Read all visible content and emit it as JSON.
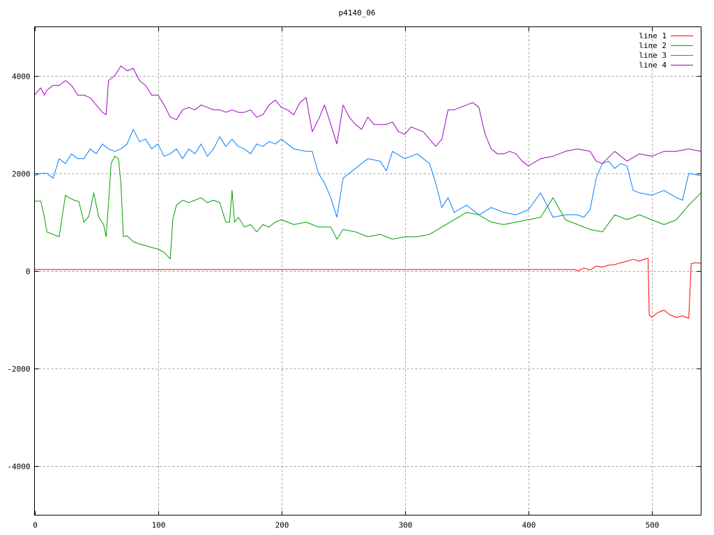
{
  "chart_data": {
    "type": "line",
    "title": "p4140_06",
    "xlabel": "",
    "ylabel": "",
    "xlim": [
      0,
      540
    ],
    "ylim": [
      -5000,
      5000
    ],
    "xticks": [
      0,
      100,
      200,
      300,
      400,
      500
    ],
    "yticks": [
      -4000,
      -2000,
      0,
      2000,
      4000
    ],
    "xtick_labels": [
      "0",
      "100",
      "200",
      "300",
      "400",
      "500"
    ],
    "ytick_labels": [
      "-4000",
      "-2000",
      "0",
      "2000",
      "4000"
    ],
    "grid": true,
    "legend_position": "top-right",
    "series": [
      {
        "name": "line 1",
        "color": "#ff0000",
        "x": [
          0,
          100,
          200,
          300,
          400,
          438,
          440,
          445,
          450,
          455,
          460,
          465,
          470,
          475,
          480,
          485,
          490,
          495,
          497,
          498,
          500,
          505,
          510,
          515,
          520,
          525,
          530,
          532,
          535,
          540
        ],
        "y": [
          30,
          30,
          30,
          30,
          30,
          30,
          0,
          60,
          20,
          100,
          80,
          120,
          130,
          170,
          200,
          240,
          200,
          250,
          260,
          -900,
          -950,
          -850,
          -800,
          -900,
          -950,
          -920,
          -970,
          150,
          170,
          160
        ]
      },
      {
        "name": "line 2",
        "color": "#00a000",
        "x": [
          0,
          5,
          8,
          10,
          15,
          20,
          25,
          28,
          32,
          36,
          40,
          44,
          48,
          52,
          56,
          58,
          60,
          62,
          65,
          68,
          70,
          72,
          75,
          80,
          85,
          90,
          95,
          100,
          105,
          108,
          110,
          112,
          115,
          120,
          125,
          130,
          135,
          140,
          145,
          150,
          155,
          158,
          160,
          162,
          165,
          170,
          175,
          180,
          185,
          190,
          195,
          200,
          210,
          220,
          230,
          240,
          245,
          250,
          260,
          270,
          280,
          290,
          300,
          310,
          320,
          330,
          340,
          350,
          360,
          370,
          380,
          390,
          400,
          410,
          420,
          430,
          440,
          450,
          460,
          470,
          480,
          490,
          500,
          510,
          520,
          530,
          540
        ],
        "y": [
          1430,
          1430,
          1100,
          800,
          750,
          700,
          1550,
          1500,
          1450,
          1420,
          1000,
          1120,
          1600,
          1100,
          950,
          700,
          1400,
          2200,
          2350,
          2300,
          1800,
          700,
          720,
          600,
          550,
          520,
          480,
          450,
          380,
          300,
          250,
          1050,
          1350,
          1450,
          1400,
          1450,
          1500,
          1400,
          1450,
          1400,
          1000,
          1000,
          1650,
          1000,
          1100,
          900,
          950,
          800,
          950,
          900,
          1000,
          1050,
          950,
          1000,
          900,
          900,
          650,
          850,
          800,
          700,
          750,
          650,
          700,
          700,
          750,
          900,
          1050,
          1200,
          1150,
          1000,
          950,
          1000,
          1050,
          1100,
          1500,
          1050,
          950,
          850,
          800,
          1150,
          1050,
          1150,
          1050,
          950,
          1050,
          1350,
          1600
        ]
      },
      {
        "name": "line 3",
        "color": "#0080ff",
        "x": [
          0,
          5,
          10,
          15,
          20,
          25,
          30,
          35,
          40,
          45,
          50,
          55,
          60,
          65,
          70,
          75,
          80,
          85,
          90,
          95,
          100,
          105,
          110,
          115,
          120,
          125,
          130,
          135,
          140,
          145,
          150,
          155,
          160,
          165,
          170,
          175,
          180,
          185,
          190,
          195,
          200,
          210,
          220,
          225,
          230,
          235,
          240,
          245,
          250,
          260,
          270,
          280,
          285,
          290,
          300,
          310,
          320,
          325,
          330,
          335,
          340,
          350,
          360,
          370,
          380,
          390,
          400,
          410,
          420,
          430,
          440,
          445,
          450,
          455,
          460,
          465,
          470,
          475,
          480,
          485,
          490,
          500,
          510,
          520,
          525,
          530,
          540
        ],
        "y": [
          1950,
          2000,
          2000,
          1900,
          2300,
          2200,
          2400,
          2300,
          2300,
          2500,
          2400,
          2600,
          2500,
          2450,
          2500,
          2600,
          2900,
          2650,
          2700,
          2500,
          2600,
          2350,
          2400,
          2500,
          2300,
          2500,
          2400,
          2600,
          2350,
          2500,
          2750,
          2550,
          2700,
          2550,
          2500,
          2400,
          2600,
          2550,
          2650,
          2600,
          2700,
          2500,
          2450,
          2450,
          2000,
          1800,
          1500,
          1100,
          1900,
          2100,
          2300,
          2250,
          2050,
          2450,
          2300,
          2400,
          2200,
          1800,
          1300,
          1500,
          1200,
          1350,
          1150,
          1300,
          1200,
          1150,
          1250,
          1600,
          1100,
          1150,
          1150,
          1100,
          1250,
          1900,
          2200,
          2250,
          2100,
          2200,
          2150,
          1650,
          1600,
          1550,
          1650,
          1500,
          1450,
          2000,
          1950
        ]
      },
      {
        "name": "line 4",
        "color": "#a000c0",
        "x": [
          0,
          5,
          8,
          10,
          15,
          20,
          25,
          30,
          35,
          40,
          45,
          50,
          55,
          58,
          60,
          65,
          70,
          75,
          80,
          85,
          90,
          95,
          100,
          105,
          110,
          115,
          120,
          125,
          130,
          135,
          140,
          145,
          150,
          155,
          160,
          165,
          170,
          175,
          180,
          185,
          190,
          195,
          200,
          205,
          210,
          215,
          220,
          225,
          230,
          235,
          240,
          245,
          250,
          255,
          260,
          265,
          270,
          275,
          280,
          285,
          290,
          295,
          300,
          305,
          310,
          315,
          320,
          325,
          330,
          335,
          340,
          345,
          350,
          355,
          360,
          365,
          370,
          375,
          380,
          385,
          390,
          395,
          400,
          410,
          420,
          430,
          440,
          450,
          455,
          460,
          470,
          480,
          490,
          500,
          510,
          520,
          530,
          540
        ],
        "y": [
          3600,
          3750,
          3600,
          3700,
          3800,
          3800,
          3900,
          3800,
          3600,
          3600,
          3550,
          3400,
          3250,
          3200,
          3900,
          4000,
          4200,
          4100,
          4150,
          3900,
          3800,
          3600,
          3600,
          3400,
          3150,
          3100,
          3300,
          3350,
          3300,
          3400,
          3350,
          3300,
          3300,
          3250,
          3300,
          3250,
          3250,
          3300,
          3150,
          3200,
          3400,
          3500,
          3350,
          3300,
          3200,
          3450,
          3550,
          2850,
          3100,
          3400,
          3000,
          2600,
          3400,
          3150,
          3000,
          2900,
          3150,
          3000,
          3000,
          3000,
          3050,
          2850,
          2800,
          2950,
          2900,
          2850,
          2700,
          2550,
          2700,
          3300,
          3300,
          3350,
          3400,
          3450,
          3350,
          2800,
          2500,
          2400,
          2400,
          2450,
          2400,
          2250,
          2150,
          2300,
          2350,
          2450,
          2500,
          2450,
          2250,
          2200,
          2450,
          2250,
          2400,
          2350,
          2450,
          2450,
          2500,
          2450
        ]
      }
    ]
  }
}
